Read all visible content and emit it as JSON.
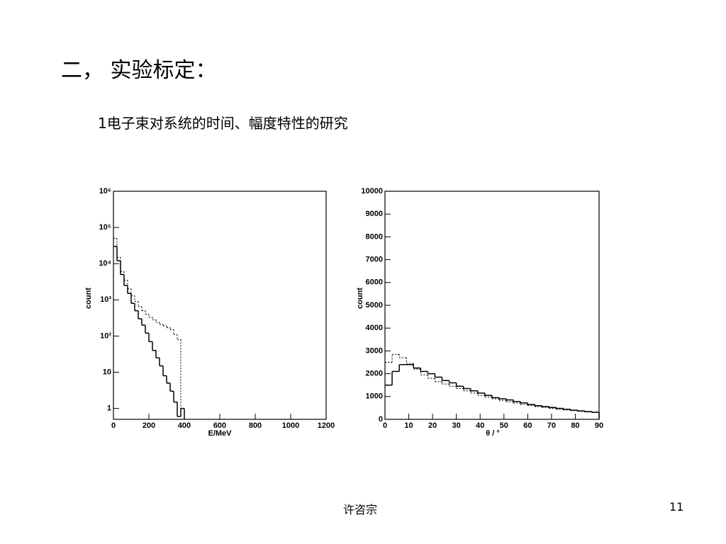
{
  "heading": "二， 实验标定：",
  "subheading": "1电子束对系统的时间、幅度特性的研究",
  "footer": {
    "author": "许咨宗",
    "page_number": 11
  },
  "chart_data": [
    {
      "type": "histogram",
      "xlabel": "E/MeV",
      "ylabel": "count",
      "log_y": true,
      "xlim": [
        0,
        1200
      ],
      "xticks": [
        0,
        200,
        400,
        600,
        800,
        1000,
        1200
      ],
      "ylim": [
        0.5,
        1000000
      ],
      "yticks": [
        1,
        10,
        {
          "value": 100,
          "label": "10²"
        },
        {
          "value": 1000,
          "label": "10³"
        },
        {
          "value": 10000,
          "label": "10⁴"
        },
        {
          "value": 100000,
          "label": "10⁵"
        },
        {
          "value": 1000000,
          "label": "10⁶"
        }
      ],
      "bins": [
        0,
        20,
        40,
        60,
        80,
        100,
        120,
        140,
        160,
        180,
        200,
        220,
        240,
        260,
        280,
        300,
        320,
        340,
        360,
        380,
        400
      ],
      "series": [
        {
          "color": "#000000",
          "line_style": "solid",
          "values": [
            30000,
            12000,
            5000,
            2500,
            1500,
            800,
            500,
            300,
            200,
            120,
            70,
            40,
            25,
            15,
            8,
            5,
            3,
            1.5,
            0.6,
            1
          ]
        },
        {
          "color": "#000000",
          "line_style": "dashed",
          "values": [
            50000,
            15000,
            6000,
            3500,
            2000,
            1300,
            900,
            650,
            500,
            400,
            330,
            280,
            240,
            210,
            190,
            170,
            150,
            110,
            80,
            1
          ]
        }
      ]
    },
    {
      "type": "histogram",
      "xlabel": "θ / °",
      "ylabel": "count",
      "log_y": false,
      "xlim": [
        0,
        90
      ],
      "xticks": [
        0,
        10,
        20,
        30,
        40,
        50,
        60,
        70,
        80,
        90
      ],
      "ylim": [
        0,
        10000
      ],
      "yticks": [
        0,
        1000,
        2000,
        3000,
        4000,
        5000,
        6000,
        7000,
        8000,
        9000,
        10000
      ],
      "bins": [
        0,
        3,
        6,
        9,
        12,
        15,
        18,
        21,
        24,
        27,
        30,
        33,
        36,
        39,
        42,
        45,
        48,
        51,
        54,
        57,
        60,
        63,
        66,
        69,
        72,
        75,
        78,
        81,
        84,
        87,
        90
      ],
      "series": [
        {
          "color": "#000000",
          "line_style": "solid",
          "values": [
            1500,
            2100,
            2400,
            2400,
            2250,
            2100,
            2000,
            1850,
            1700,
            1600,
            1450,
            1350,
            1250,
            1150,
            1050,
            950,
            900,
            850,
            780,
            720,
            650,
            600,
            560,
            520,
            480,
            440,
            400,
            370,
            340,
            310
          ]
        },
        {
          "color": "#000000",
          "line_style": "dashed",
          "values": [
            2500,
            2850,
            2700,
            2450,
            2200,
            1950,
            1800,
            1650,
            1550,
            1450,
            1350,
            1250,
            1150,
            1050,
            980,
            900,
            830,
            770,
            710,
            650,
            600,
            560,
            520,
            480,
            440,
            410,
            380,
            350,
            320,
            300
          ]
        }
      ]
    }
  ]
}
